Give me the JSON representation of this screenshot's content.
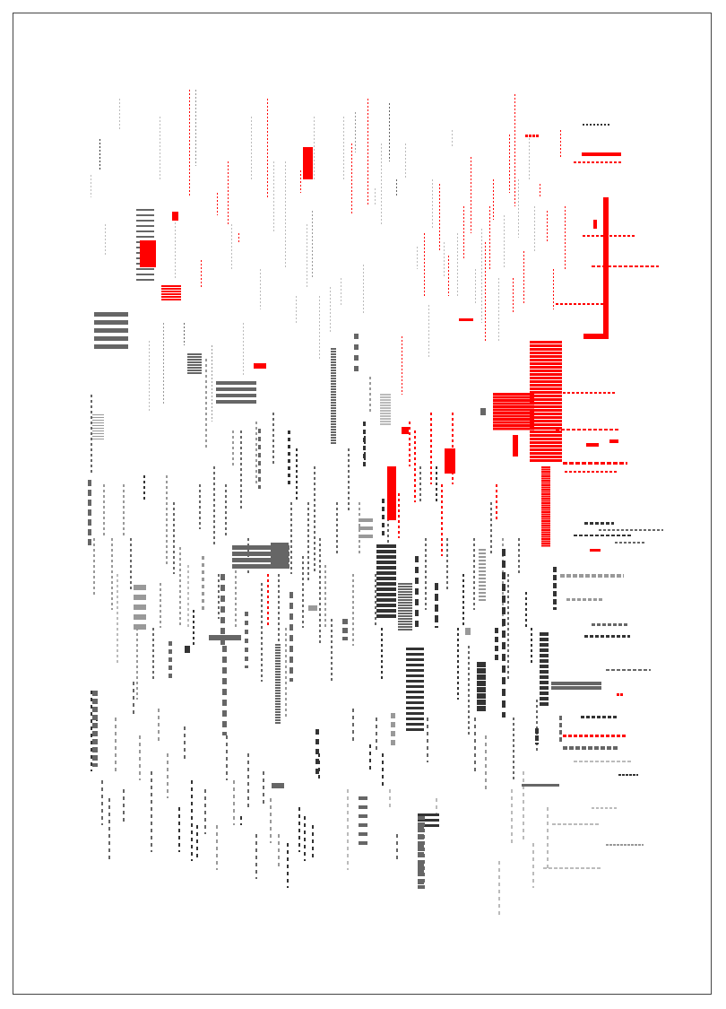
{
  "palette": {
    "background": "#ffffff",
    "border": "#444444",
    "red": "#ff0000",
    "dark": "#333333",
    "mid": "#666666",
    "light": "#999999",
    "pale": "#bbbbbb"
  }
}
